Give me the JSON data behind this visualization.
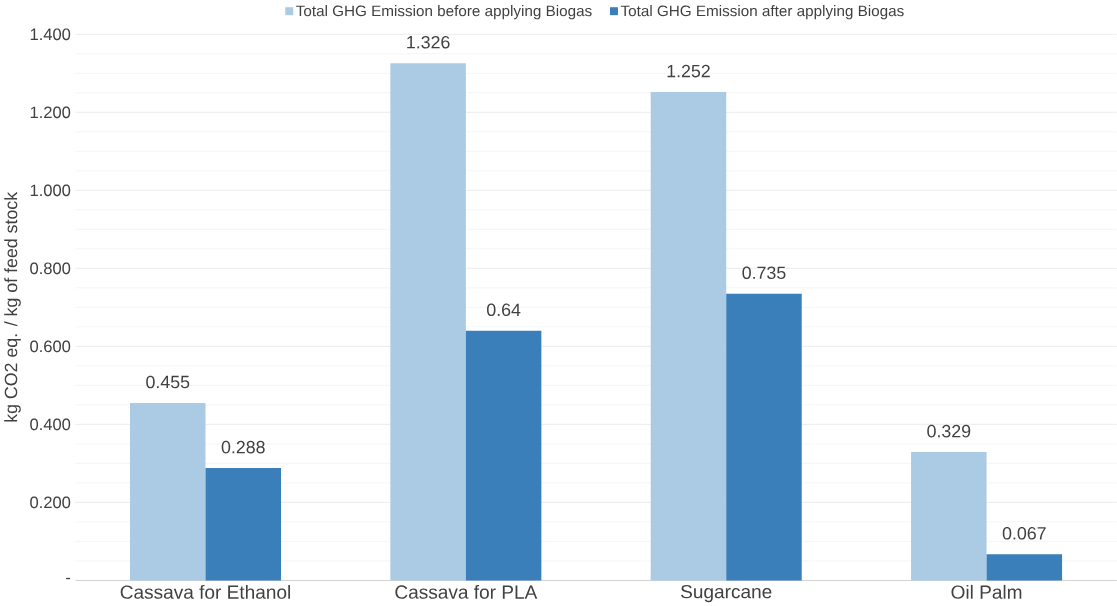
{
  "chart_data": {
    "type": "bar",
    "ylabel": "kg CO2 eq. / kg of feed stock",
    "categories": [
      "Cassava for Ethanol",
      "Cassava for PLA",
      "Sugarcane",
      "Oil Palm"
    ],
    "series": [
      {
        "name": "Total GHG Emission before applying Biogas",
        "color": "#abcbe4",
        "values": [
          0.455,
          1.326,
          1.252,
          0.329
        ]
      },
      {
        "name": "Total GHG Emission after applying Biogas",
        "color": "#3a7fba",
        "values": [
          0.288,
          0.64,
          0.735,
          0.067
        ]
      }
    ],
    "ylim": [
      0,
      1.4
    ],
    "yticks": [
      {
        "value": 0,
        "label": "-"
      },
      {
        "value": 0.2,
        "label": "0.200"
      },
      {
        "value": 0.4,
        "label": "0.400"
      },
      {
        "value": 0.6,
        "label": "0.600"
      },
      {
        "value": 0.8,
        "label": "0.800"
      },
      {
        "value": 1.0,
        "label": "1.000"
      },
      {
        "value": 1.2,
        "label": "1.200"
      },
      {
        "value": 1.4,
        "label": "1.400"
      }
    ],
    "grid": "y",
    "legend": "top",
    "data_labels": true
  }
}
